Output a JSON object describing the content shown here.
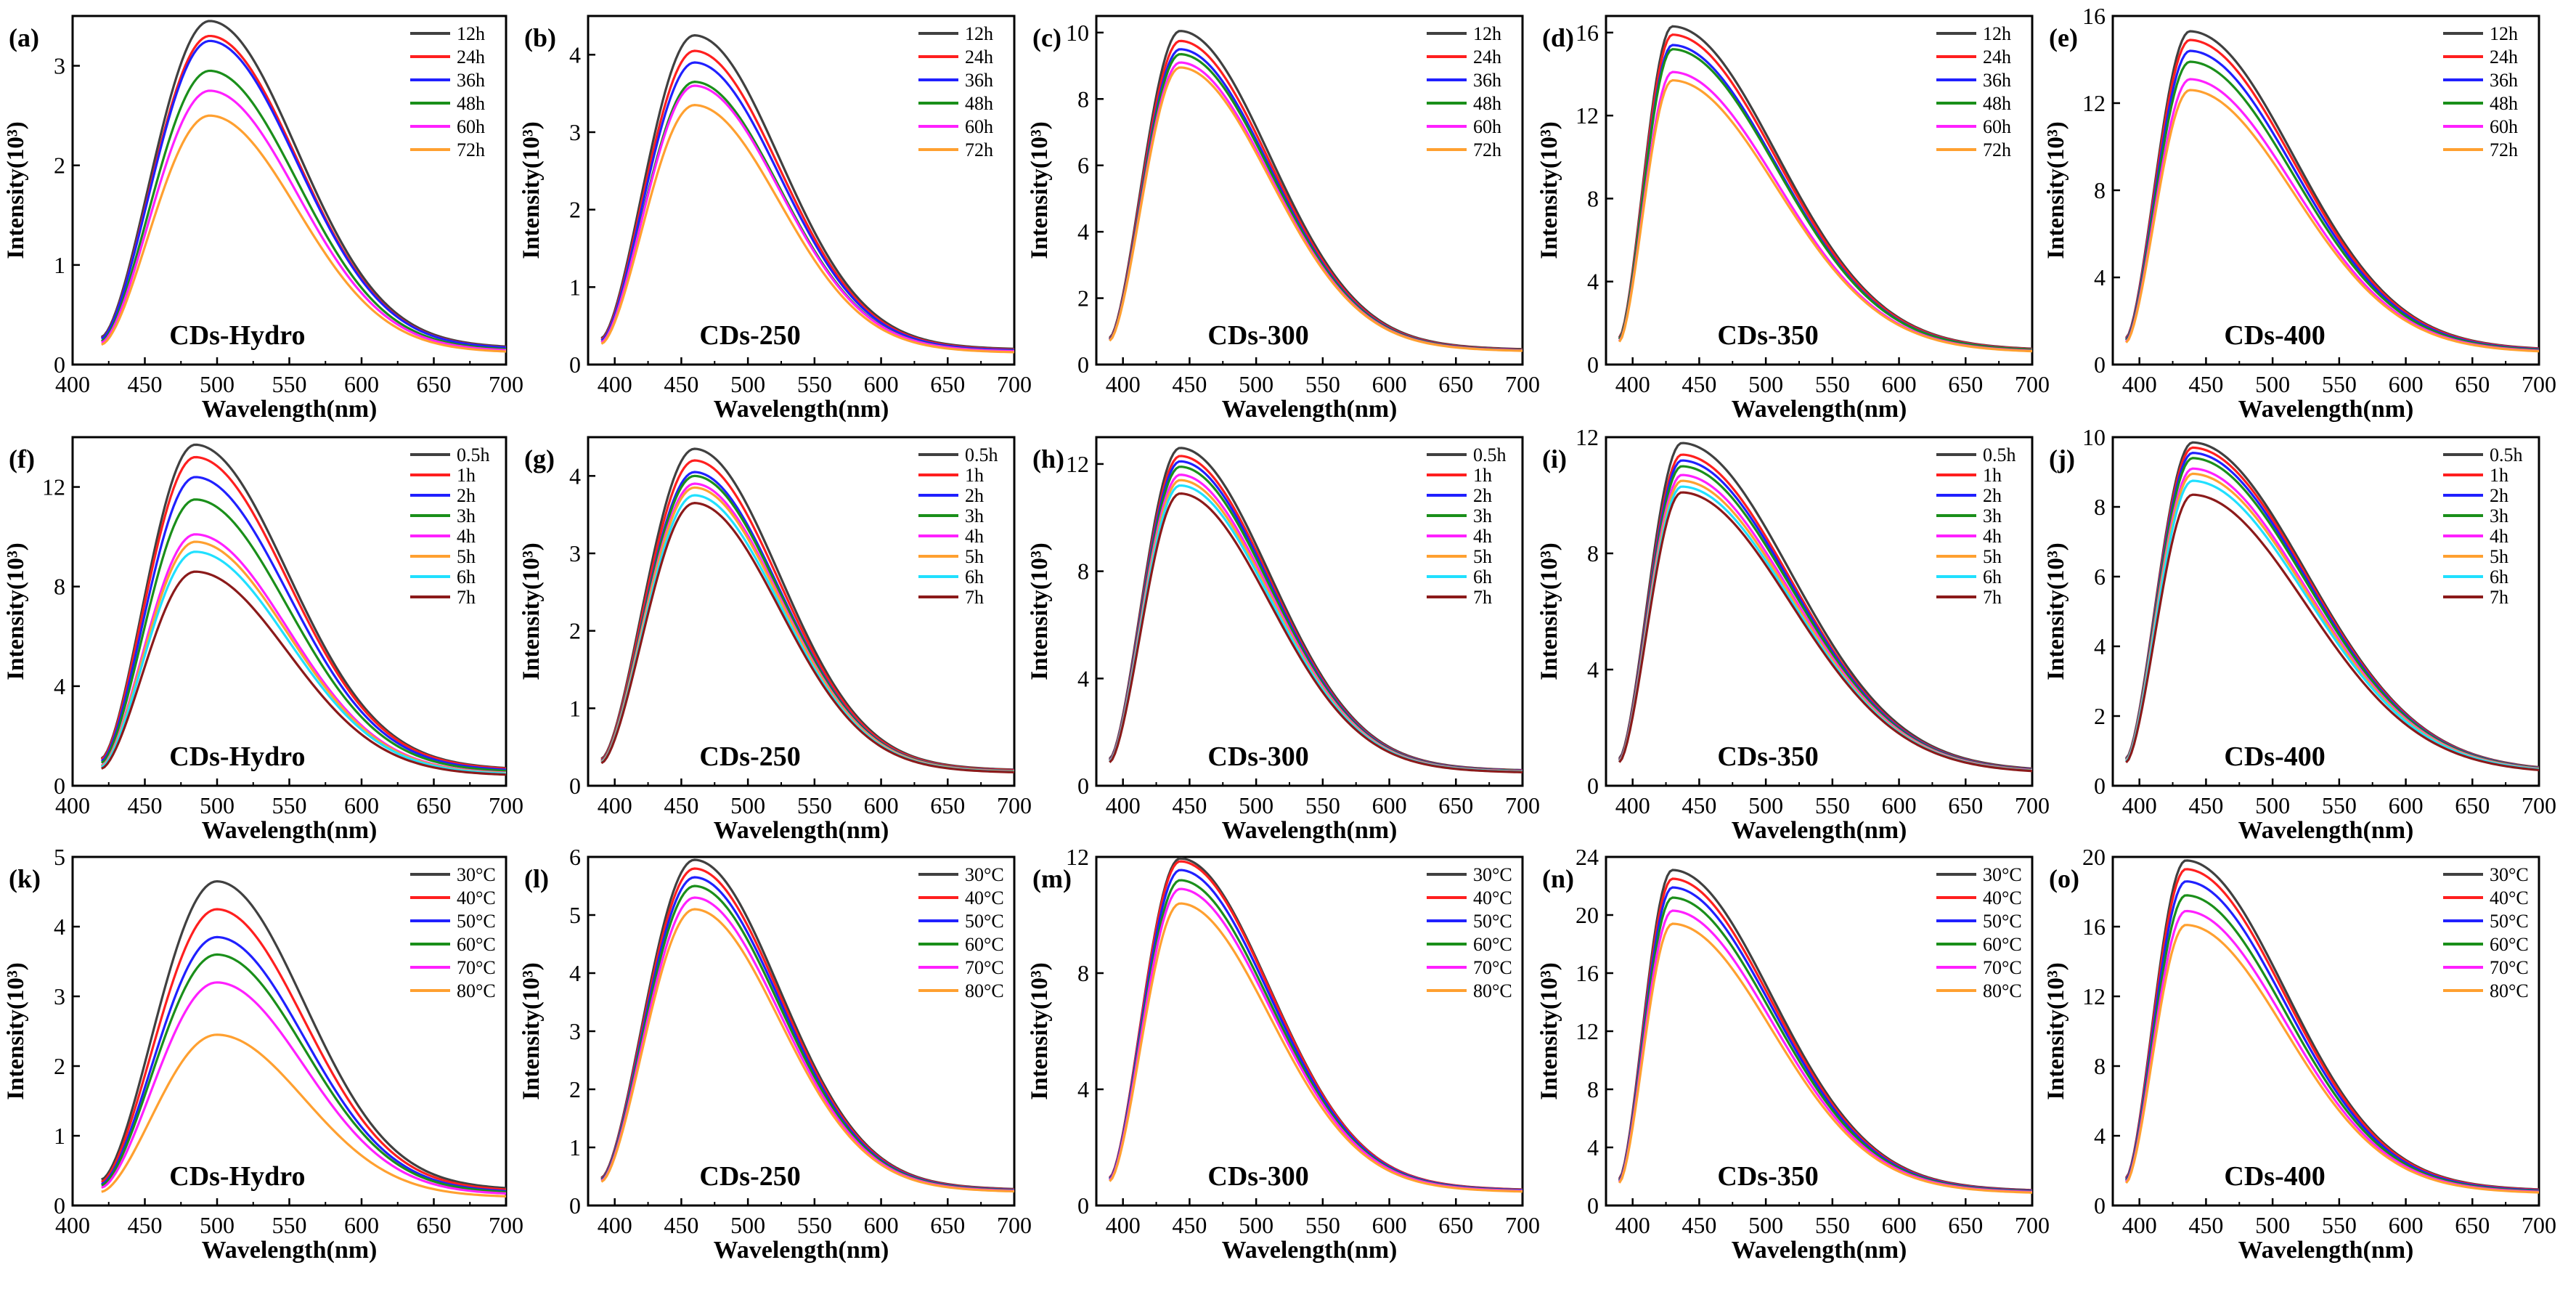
{
  "figure": {
    "x_label": "Wavelength(nm)",
    "y_label": "Intensity(10³)"
  },
  "colors": {
    "black": "#404040",
    "red": "#ff1f1f",
    "blue": "#2020ff",
    "green": "#1a8f1a",
    "magenta": "#ff20ff",
    "orange": "#ffa030",
    "cyan": "#20e0ff",
    "brown": "#8b1a1a"
  },
  "rows": [
    {
      "legend": [
        "12h",
        "24h",
        "36h",
        "48h",
        "60h",
        "72h"
      ],
      "legend_colors": [
        "black",
        "red",
        "blue",
        "green",
        "magenta",
        "orange"
      ]
    },
    {
      "legend": [
        "0.5h",
        "1h",
        "2h",
        "3h",
        "4h",
        "5h",
        "6h",
        "7h"
      ],
      "legend_colors": [
        "black",
        "red",
        "blue",
        "green",
        "magenta",
        "orange",
        "cyan",
        "brown"
      ]
    },
    {
      "legend": [
        "30°C",
        "40°C",
        "50°C",
        "60°C",
        "70°C",
        "80°C"
      ],
      "legend_colors": [
        "black",
        "red",
        "blue",
        "green",
        "magenta",
        "orange"
      ]
    }
  ],
  "chart_data": [
    {
      "panel": "(a)",
      "sample": "CDs-Hydro",
      "type": "line",
      "xlim": [
        400,
        700
      ],
      "ylim": [
        0,
        3.5
      ],
      "yticks": [
        0,
        1,
        2,
        3
      ],
      "start": 420,
      "peak_wl": 495,
      "right_width": 85,
      "peaks": [
        3.45,
        3.3,
        3.25,
        2.95,
        2.75,
        2.5
      ],
      "x_ticks": [
        400,
        450,
        500,
        550,
        600,
        650,
        700
      ]
    },
    {
      "panel": "(b)",
      "sample": "CDs-250",
      "type": "line",
      "xlim": [
        380,
        700
      ],
      "ylim": [
        0,
        4.5
      ],
      "yticks": [
        0,
        1,
        2,
        3,
        4
      ],
      "start": 390,
      "peak_wl": 460,
      "right_width": 90,
      "peaks": [
        4.25,
        4.05,
        3.9,
        3.65,
        3.6,
        3.35
      ],
      "x_ticks": [
        400,
        450,
        500,
        550,
        600,
        650,
        700
      ]
    },
    {
      "panel": "(c)",
      "sample": "CDs-300",
      "type": "line",
      "xlim": [
        380,
        700
      ],
      "ylim": [
        0,
        10.5
      ],
      "yticks": [
        0,
        2,
        4,
        6,
        8,
        10
      ],
      "start": 390,
      "peak_wl": 443,
      "right_width": 95,
      "peaks": [
        10.05,
        9.75,
        9.5,
        9.35,
        9.1,
        8.95
      ],
      "x_ticks": [
        400,
        450,
        500,
        550,
        600,
        650,
        700
      ]
    },
    {
      "panel": "(d)",
      "sample": "CDs-350",
      "type": "line",
      "xlim": [
        380,
        700
      ],
      "ylim": [
        0,
        16.8
      ],
      "yticks": [
        0,
        4,
        8,
        12,
        16
      ],
      "start": 390,
      "peak_wl": 430,
      "right_width": 110,
      "peaks": [
        16.3,
        15.9,
        15.4,
        15.2,
        14.1,
        13.7
      ],
      "x_ticks": [
        400,
        450,
        500,
        550,
        600,
        650,
        700
      ]
    },
    {
      "panel": "(e)",
      "sample": "CDs-400",
      "type": "line",
      "xlim": [
        380,
        700
      ],
      "ylim": [
        0,
        16
      ],
      "yticks": [
        0,
        4,
        8,
        12,
        16
      ],
      "start": 390,
      "peak_wl": 438,
      "right_width": 110,
      "peaks": [
        15.3,
        14.9,
        14.4,
        13.9,
        13.1,
        12.6
      ],
      "x_ticks": [
        400,
        450,
        500,
        550,
        600,
        650,
        700
      ]
    },
    {
      "panel": "(f)",
      "sample": "CDs-Hydro",
      "type": "line",
      "xlim": [
        400,
        700
      ],
      "ylim": [
        0,
        14
      ],
      "yticks": [
        0,
        4,
        8,
        12
      ],
      "start": 420,
      "peak_wl": 485,
      "right_width": 90,
      "peaks": [
        13.7,
        13.2,
        12.4,
        11.5,
        10.1,
        9.8,
        9.4,
        8.6
      ],
      "x_ticks": [
        400,
        450,
        500,
        550,
        600,
        650,
        700
      ]
    },
    {
      "panel": "(g)",
      "sample": "CDs-250",
      "type": "line",
      "xlim": [
        380,
        700
      ],
      "ylim": [
        0,
        4.5
      ],
      "yticks": [
        0,
        1,
        2,
        3,
        4
      ],
      "start": 390,
      "peak_wl": 460,
      "right_width": 90,
      "peaks": [
        4.35,
        4.2,
        4.05,
        4.0,
        3.9,
        3.85,
        3.75,
        3.65
      ],
      "x_ticks": [
        400,
        450,
        500,
        550,
        600,
        650,
        700
      ]
    },
    {
      "panel": "(h)",
      "sample": "CDs-300",
      "type": "line",
      "xlim": [
        380,
        700
      ],
      "ylim": [
        0,
        13
      ],
      "yticks": [
        0,
        4,
        8,
        12
      ],
      "start": 390,
      "peak_wl": 443,
      "right_width": 95,
      "peaks": [
        12.6,
        12.3,
        12.1,
        11.9,
        11.6,
        11.4,
        11.2,
        10.9
      ],
      "x_ticks": [
        400,
        450,
        500,
        550,
        600,
        650,
        700
      ]
    },
    {
      "panel": "(i)",
      "sample": "CDs-350",
      "type": "line",
      "xlim": [
        380,
        700
      ],
      "ylim": [
        0,
        12
      ],
      "yticks": [
        0,
        4,
        8,
        12
      ],
      "start": 390,
      "peak_wl": 437,
      "right_width": 115,
      "peaks": [
        11.8,
        11.4,
        11.2,
        11.0,
        10.7,
        10.5,
        10.3,
        10.1
      ],
      "x_ticks": [
        400,
        450,
        500,
        550,
        600,
        650,
        700
      ]
    },
    {
      "panel": "(j)",
      "sample": "CDs-400",
      "type": "line",
      "xlim": [
        380,
        700
      ],
      "ylim": [
        0,
        10
      ],
      "yticks": [
        0,
        2,
        4,
        6,
        8,
        10
      ],
      "start": 390,
      "peak_wl": 440,
      "right_width": 120,
      "peaks": [
        9.85,
        9.7,
        9.55,
        9.4,
        9.1,
        8.95,
        8.75,
        8.35
      ],
      "x_ticks": [
        400,
        450,
        500,
        550,
        600,
        650,
        700
      ]
    },
    {
      "panel": "(k)",
      "sample": "CDs-Hydro",
      "type": "line",
      "xlim": [
        400,
        700
      ],
      "ylim": [
        0,
        5
      ],
      "yticks": [
        0,
        1,
        2,
        3,
        4,
        5
      ],
      "start": 420,
      "peak_wl": 500,
      "right_width": 85,
      "peaks": [
        4.65,
        4.25,
        3.85,
        3.6,
        3.2,
        2.45
      ],
      "x_ticks": [
        400,
        450,
        500,
        550,
        600,
        650,
        700
      ]
    },
    {
      "panel": "(l)",
      "sample": "CDs-250",
      "type": "line",
      "xlim": [
        380,
        700
      ],
      "ylim": [
        0,
        6
      ],
      "yticks": [
        0,
        1,
        2,
        3,
        4,
        5,
        6
      ],
      "start": 390,
      "peak_wl": 460,
      "right_width": 90,
      "peaks": [
        5.95,
        5.8,
        5.65,
        5.5,
        5.3,
        5.1
      ],
      "x_ticks": [
        400,
        450,
        500,
        550,
        600,
        650,
        700
      ]
    },
    {
      "panel": "(m)",
      "sample": "CDs-300",
      "type": "line",
      "xlim": [
        380,
        700
      ],
      "ylim": [
        0,
        12
      ],
      "yticks": [
        0,
        4,
        8,
        12
      ],
      "start": 390,
      "peak_wl": 443,
      "right_width": 95,
      "peaks": [
        11.95,
        11.85,
        11.55,
        11.2,
        10.9,
        10.4
      ],
      "x_ticks": [
        400,
        450,
        500,
        550,
        600,
        650,
        700
      ]
    },
    {
      "panel": "(n)",
      "sample": "CDs-350",
      "type": "line",
      "xlim": [
        380,
        700
      ],
      "ylim": [
        0,
        24
      ],
      "yticks": [
        0,
        4,
        8,
        12,
        16,
        20,
        24
      ],
      "start": 390,
      "peak_wl": 430,
      "right_width": 105,
      "peaks": [
        23.1,
        22.5,
        21.9,
        21.2,
        20.3,
        19.4
      ],
      "x_ticks": [
        400,
        450,
        500,
        550,
        600,
        650,
        700
      ]
    },
    {
      "panel": "(o)",
      "sample": "CDs-400",
      "type": "line",
      "xlim": [
        380,
        700
      ],
      "ylim": [
        0,
        20
      ],
      "yticks": [
        0,
        4,
        8,
        12,
        16,
        20
      ],
      "start": 390,
      "peak_wl": 435,
      "right_width": 105,
      "peaks": [
        19.8,
        19.3,
        18.6,
        17.8,
        16.9,
        16.1
      ],
      "x_ticks": [
        400,
        450,
        500,
        550,
        600,
        650,
        700
      ]
    }
  ]
}
